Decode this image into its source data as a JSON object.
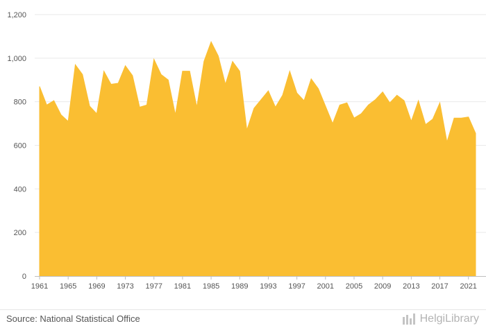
{
  "chart_data": {
    "type": "area",
    "title": "",
    "xlabel": "",
    "ylabel": "",
    "x": [
      1961,
      1962,
      1963,
      1964,
      1965,
      1966,
      1967,
      1968,
      1969,
      1970,
      1971,
      1972,
      1973,
      1974,
      1975,
      1976,
      1977,
      1978,
      1979,
      1980,
      1981,
      1982,
      1983,
      1984,
      1985,
      1986,
      1987,
      1988,
      1989,
      1990,
      1991,
      1992,
      1993,
      1994,
      1995,
      1996,
      1997,
      1998,
      1999,
      2000,
      2001,
      2002,
      2003,
      2004,
      2005,
      2006,
      2007,
      2008,
      2009,
      2010,
      2011,
      2012,
      2013,
      2014,
      2015,
      2016,
      2017,
      2018,
      2019,
      2020,
      2021,
      2022
    ],
    "values": [
      870,
      785,
      805,
      740,
      710,
      970,
      925,
      780,
      745,
      940,
      880,
      885,
      965,
      920,
      775,
      785,
      995,
      925,
      900,
      740,
      940,
      940,
      775,
      985,
      1075,
      1010,
      880,
      985,
      940,
      670,
      770,
      810,
      850,
      775,
      830,
      940,
      840,
      805,
      905,
      860,
      780,
      700,
      785,
      795,
      725,
      745,
      785,
      810,
      845,
      795,
      830,
      805,
      710,
      805,
      695,
      720,
      795,
      615,
      725,
      725,
      730,
      655
    ],
    "ylim": [
      0,
      1200
    ],
    "yticks": [
      0,
      200,
      400,
      600,
      800,
      1000,
      1200
    ],
    "ytick_labels": [
      "0",
      "200",
      "400",
      "600",
      "800",
      "1,000",
      "1,200"
    ],
    "xticks": [
      1961,
      1965,
      1969,
      1973,
      1977,
      1981,
      1985,
      1989,
      1993,
      1997,
      2001,
      2005,
      2009,
      2013,
      2017,
      2021
    ],
    "xtick_labels": [
      "1961",
      "1965",
      "1969",
      "1973",
      "1977",
      "1981",
      "1985",
      "1989",
      "1993",
      "1997",
      "2001",
      "2005",
      "2009",
      "2013",
      "2017",
      "2021"
    ],
    "grid": true,
    "legend": "none",
    "colors": {
      "area": "#fabe32",
      "grid": "#e9e9e9",
      "axis": "#bdbdbd"
    }
  },
  "footer": {
    "source": "Source: National Statistical Office",
    "logo_text": "HelgiLibrary"
  }
}
